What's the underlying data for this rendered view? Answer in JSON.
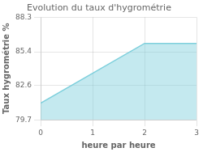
{
  "chart_data": {
    "type": "area",
    "title": "Evolution du taux d'hygrométrie",
    "xlabel": "heure par heure",
    "ylabel": "Taux hygrométrie %",
    "x": [
      0,
      2,
      3
    ],
    "values": [
      81.1,
      86.1,
      86.1
    ],
    "color": "#7dcfdc",
    "xlim": [
      0,
      3
    ],
    "ylim": [
      79.7,
      88.3
    ],
    "xticks": [
      0,
      1,
      2,
      3
    ],
    "yticks": [
      79.7,
      82.6,
      85.4,
      88.3
    ],
    "grid": true
  }
}
